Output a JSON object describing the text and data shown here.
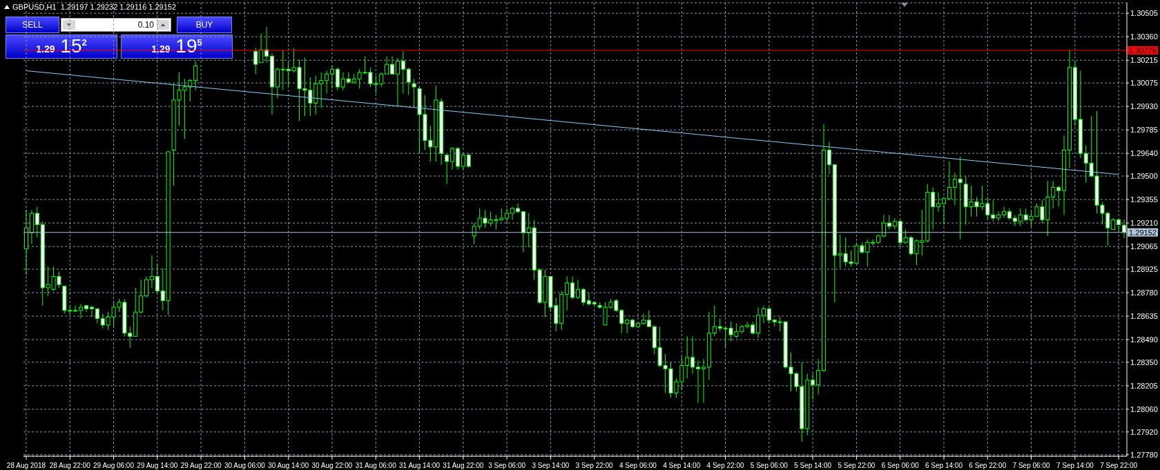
{
  "chart_data": {
    "type": "candlestick",
    "title": "GBPUSD,H1  1.29197 1.29232 1.29116 1.29152",
    "categories": [
      "28 Aug 2018",
      null,
      null,
      null,
      null,
      null,
      null,
      null,
      "28 Aug 22:00",
      null,
      null,
      null,
      null,
      null,
      null,
      null,
      "29 Aug 06:00",
      null,
      null,
      null,
      null,
      null,
      null,
      null,
      "29 Aug 14:00",
      null,
      null,
      null,
      null,
      null,
      null,
      null,
      "29 Aug 22:00",
      null,
      null,
      null,
      null,
      null,
      null,
      null,
      "30 Aug 06:00",
      null,
      null,
      null,
      null,
      null,
      null,
      null,
      "30 Aug 14:00",
      null,
      null,
      null,
      null,
      null,
      null,
      null,
      "30 Aug 22:00",
      null,
      null,
      null,
      null,
      null,
      null,
      null,
      "31 Aug 06:00",
      null,
      null,
      null,
      null,
      null,
      null,
      null,
      "31 Aug 14:00",
      null,
      null,
      null,
      null,
      null,
      null,
      null,
      "31 Aug 22:00",
      null,
      null,
      null,
      null,
      null,
      null,
      null,
      "3 Sep 06:00",
      null,
      null,
      null,
      null,
      null,
      null,
      null,
      "3 Sep 14:00",
      null,
      null,
      null,
      null,
      null,
      null,
      null,
      "3 Sep 22:00",
      null,
      null,
      null,
      null,
      null,
      null,
      null,
      "4 Sep 06:00",
      null,
      null,
      null,
      null,
      null,
      null,
      null,
      "4 Sep 14:00",
      null,
      null,
      null,
      null,
      null,
      null,
      null,
      "4 Sep 22:00",
      null,
      null,
      null,
      null,
      null,
      null,
      null,
      "5 Sep 06:00",
      null,
      null,
      null,
      null,
      null,
      null,
      null,
      "5 Sep 14:00",
      null,
      null,
      null,
      null,
      null,
      null,
      null,
      "5 Sep 22:00",
      null,
      null,
      null,
      null,
      null,
      null,
      null,
      "6 Sep 06:00",
      null,
      null,
      null,
      null,
      null,
      null,
      null,
      "6 Sep 14:00",
      null,
      null,
      null,
      null,
      null,
      null,
      null,
      "6 Sep 22:00",
      null,
      null,
      null,
      null,
      null,
      null,
      null,
      "7 Sep 06:00",
      null,
      null,
      null,
      null,
      null,
      null,
      null,
      "7 Sep 14:00",
      null,
      null,
      null,
      null,
      null,
      null,
      null,
      "7 Sep 22:00",
      null
    ],
    "series": [
      {
        "color": "#00ff00",
        "ohlc": [
          [
            1.2905,
            1.2929,
            1.2889,
            1.2918
          ],
          [
            1.2915,
            1.2929,
            1.2908,
            1.2927
          ],
          [
            1.2927,
            1.2931,
            1.2912,
            1.292
          ],
          [
            1.292,
            1.2922,
            1.287,
            1.2881
          ],
          [
            1.2881,
            1.2894,
            1.2876,
            1.2883
          ],
          [
            1.288,
            1.2894,
            1.2879,
            1.2888
          ],
          [
            1.2888,
            1.2891,
            1.2881,
            1.2883
          ],
          [
            1.2882,
            1.2882,
            1.2865,
            1.2867
          ],
          [
            1.2867,
            1.287,
            1.2865,
            1.2867
          ],
          [
            1.2867,
            1.287,
            1.2866,
            1.2867
          ],
          [
            1.2867,
            1.2871,
            1.2862,
            1.2869
          ],
          [
            1.287,
            1.287,
            1.2866,
            1.2868
          ],
          [
            1.2869,
            1.287,
            1.2863,
            1.2868
          ],
          [
            1.2868,
            1.2868,
            1.2859,
            1.2862
          ],
          [
            1.2862,
            1.2865,
            1.2856,
            1.2858
          ],
          [
            1.2858,
            1.2866,
            1.2855,
            1.2863
          ],
          [
            1.2863,
            1.2872,
            1.2857,
            1.2869
          ],
          [
            1.2869,
            1.2874,
            1.2866,
            1.2872
          ],
          [
            1.2872,
            1.2874,
            1.2851,
            1.2853
          ],
          [
            1.2853,
            1.2857,
            1.2844,
            1.2851
          ],
          [
            1.2851,
            1.2881,
            1.2851,
            1.2866
          ],
          [
            1.2866,
            1.2886,
            1.2865,
            1.2876
          ],
          [
            1.2876,
            1.2888,
            1.2875,
            1.2886
          ],
          [
            1.2886,
            1.2901,
            1.2881,
            1.2888
          ],
          [
            1.2888,
            1.2896,
            1.2878,
            1.2879
          ],
          [
            1.2879,
            1.2893,
            1.2867,
            1.2873
          ],
          [
            1.2873,
            1.2965,
            1.2864,
            1.2965
          ],
          [
            1.2966,
            1.3007,
            1.2944,
            1.2997
          ],
          [
            1.2997,
            1.3014,
            1.2981,
            1.3003
          ],
          [
            1.3003,
            1.301,
            1.2973,
            1.3005
          ],
          [
            1.3005,
            1.301,
            1.2996,
            1.3009
          ],
          [
            1.3009,
            1.3021,
            1.3003,
            1.3018
          ],
          null,
          null,
          null,
          null,
          null,
          null,
          null,
          null,
          null,
          null,
          [
            1.3027,
            1.3029,
            1.3013,
            1.3019
          ],
          [
            1.302,
            1.3038,
            1.302,
            1.3028
          ],
          [
            1.3028,
            1.3042,
            1.302,
            1.3024
          ],
          [
            1.3024,
            1.3026,
            1.2988,
            1.3005
          ],
          [
            1.3005,
            1.3017,
            1.2998,
            1.3016
          ],
          [
            1.3016,
            1.3028,
            1.3003,
            1.3016
          ],
          [
            1.3016,
            1.3021,
            1.3005,
            1.3015
          ],
          [
            1.3015,
            1.3029,
            1.3014,
            1.3017
          ],
          [
            1.3017,
            1.3022,
            1.2984,
            1.3004
          ],
          [
            1.3004,
            1.3023,
            1.2987,
            1.3003
          ],
          [
            1.3003,
            1.3011,
            1.2987,
            1.2995
          ],
          [
            1.2995,
            1.3012,
            1.2988,
            1.3007
          ],
          [
            1.3007,
            1.3014,
            1.2992,
            1.3009
          ],
          [
            1.3009,
            1.3015,
            1.3001,
            1.3013
          ],
          [
            1.3013,
            1.3018,
            1.3004,
            1.3016
          ],
          [
            1.3016,
            1.3017,
            1.3003,
            1.3005
          ],
          [
            1.3005,
            1.3014,
            1.3003,
            1.301
          ],
          [
            1.301,
            1.3014,
            1.3007,
            1.3008
          ],
          [
            1.3008,
            1.3013,
            1.3007,
            1.301
          ],
          [
            1.301,
            1.3016,
            1.3004,
            1.3014
          ],
          [
            1.3014,
            1.3024,
            1.3013,
            1.3014
          ],
          [
            1.3014,
            1.3017,
            1.3005,
            1.3007
          ],
          [
            1.3007,
            1.3012,
            1.3001,
            1.3007
          ],
          [
            1.3007,
            1.3014,
            1.3005,
            1.3013
          ],
          [
            1.3013,
            1.3024,
            1.3013,
            1.3019
          ],
          [
            1.3019,
            1.3024,
            1.3013,
            1.3013
          ],
          [
            1.3013,
            1.3023,
            1.2993,
            1.3021
          ],
          [
            1.3021,
            1.3027,
            1.3001,
            1.3016
          ],
          [
            1.3016,
            1.3017,
            1.3,
            1.3008
          ],
          [
            1.3007,
            1.301,
            1.2993,
            1.3005
          ],
          [
            1.3004,
            1.3005,
            1.2964,
            1.2988
          ],
          [
            1.2988,
            1.3,
            1.2966,
            1.2972
          ],
          [
            1.2972,
            1.2981,
            1.2959,
            1.2968
          ],
          [
            1.2968,
            1.3006,
            1.2959,
            1.2997
          ],
          [
            1.2996,
            1.2998,
            1.2957,
            1.2964
          ],
          [
            1.2963,
            1.2963,
            1.2945,
            1.2959
          ],
          [
            1.2959,
            1.2968,
            1.2954,
            1.2967
          ],
          [
            1.2967,
            1.2968,
            1.2954,
            1.2956
          ],
          [
            1.2956,
            1.2964,
            1.2954,
            1.2963
          ],
          [
            1.2963,
            1.2964,
            1.2955,
            1.2956
          ],
          [
            1.2913,
            1.2921,
            1.2908,
            1.2919
          ],
          [
            1.2919,
            1.293,
            1.2917,
            1.2924
          ],
          [
            1.2924,
            1.2929,
            1.2918,
            1.2921
          ],
          [
            1.2921,
            1.2928,
            1.2919,
            1.2923
          ],
          [
            1.2923,
            1.2926,
            1.2917,
            1.2923
          ],
          [
            1.2923,
            1.293,
            1.2922,
            1.2924
          ],
          [
            1.2924,
            1.293,
            1.2921,
            1.2927
          ],
          [
            1.2927,
            1.2931,
            1.2923,
            1.293
          ],
          [
            1.293,
            1.2933,
            1.2927,
            1.2928
          ],
          [
            1.2928,
            1.2928,
            1.2903,
            1.2915
          ],
          [
            1.2915,
            1.2927,
            1.2906,
            1.2918
          ],
          [
            1.2918,
            1.2923,
            1.2886,
            1.2892
          ],
          [
            1.2892,
            1.2893,
            1.2871,
            1.2872
          ],
          [
            1.2872,
            1.2892,
            1.2863,
            1.2888
          ],
          [
            1.2888,
            1.2888,
            1.2866,
            1.2869
          ],
          [
            1.287,
            1.2875,
            1.2854,
            1.2859
          ],
          [
            1.2859,
            1.2879,
            1.2855,
            1.2877
          ],
          [
            1.2877,
            1.2888,
            1.2867,
            1.2884
          ],
          [
            1.2884,
            1.2888,
            1.2874,
            1.2875
          ],
          [
            1.2875,
            1.2886,
            1.2874,
            1.288
          ],
          [
            1.288,
            1.2881,
            1.287,
            1.2872
          ],
          [
            1.2873,
            1.2878,
            1.287,
            1.2871
          ],
          [
            1.2872,
            1.2872,
            1.287,
            1.2871
          ],
          [
            1.287,
            1.2872,
            1.2868,
            1.2869
          ],
          [
            1.2858,
            1.2872,
            1.2858,
            1.2869
          ],
          [
            1.2869,
            1.2874,
            1.2868,
            1.2872
          ],
          [
            1.2873,
            1.2874,
            1.2866,
            1.2867
          ],
          [
            1.2867,
            1.2868,
            1.2853,
            1.2859
          ],
          [
            1.2859,
            1.2862,
            1.2853,
            1.2861
          ],
          [
            1.2861,
            1.2862,
            1.2856,
            1.2857
          ],
          [
            1.2857,
            1.286,
            1.2856,
            1.2859
          ],
          [
            1.2859,
            1.2865,
            1.2858,
            1.2861
          ],
          [
            1.2861,
            1.2867,
            1.2857,
            1.2857
          ],
          [
            1.2857,
            1.2858,
            1.284,
            1.2844
          ],
          [
            1.2844,
            1.2857,
            1.2832,
            1.2833
          ],
          [
            1.2833,
            1.284,
            1.2816,
            1.2831
          ],
          [
            1.2831,
            1.2835,
            1.2813,
            1.2816
          ],
          [
            1.2816,
            1.2825,
            1.2813,
            1.2823
          ],
          [
            1.2823,
            1.2839,
            1.2818,
            1.2833
          ],
          [
            1.2833,
            1.2851,
            1.2825,
            1.2838
          ],
          [
            1.2838,
            1.2851,
            1.2828,
            1.2832
          ],
          [
            1.2832,
            1.2836,
            1.281,
            1.2831
          ],
          [
            1.2831,
            1.2837,
            1.281,
            1.2832
          ],
          [
            1.2832,
            1.2866,
            1.2824,
            1.2853
          ],
          [
            1.2853,
            1.287,
            1.2851,
            1.2857
          ],
          [
            1.2857,
            1.2862,
            1.2854,
            1.2856
          ],
          [
            1.2856,
            1.2857,
            1.2844,
            1.2856
          ],
          [
            1.2856,
            1.286,
            1.2848,
            1.2852
          ],
          [
            1.2851,
            1.2859,
            1.285,
            1.2854
          ],
          [
            1.2854,
            1.2858,
            1.2853,
            1.2857
          ],
          [
            1.2857,
            1.286,
            1.2856,
            1.2858
          ],
          [
            1.2858,
            1.286,
            1.2852,
            1.2853
          ],
          [
            1.2853,
            1.2869,
            1.285,
            1.2864
          ],
          [
            1.2864,
            1.287,
            1.2859,
            1.2868
          ],
          [
            1.2868,
            1.2869,
            1.2859,
            1.2861
          ],
          [
            1.2861,
            1.2862,
            1.2857,
            1.286
          ],
          [
            1.286,
            1.2863,
            1.2854,
            1.286
          ],
          [
            1.286,
            1.286,
            1.2831,
            1.2832
          ],
          [
            1.2832,
            1.2841,
            1.2817,
            1.2828
          ],
          [
            1.2828,
            1.2829,
            1.2817,
            1.282
          ],
          [
            1.282,
            1.2835,
            1.2786,
            1.2794
          ],
          [
            1.2794,
            1.2828,
            1.279,
            1.2824
          ],
          [
            1.2824,
            1.2828,
            1.2812,
            1.2821
          ],
          [
            1.2821,
            1.2837,
            1.2815,
            1.283
          ],
          [
            1.283,
            1.2982,
            1.2829,
            1.2966
          ],
          [
            1.2966,
            1.2971,
            1.2951,
            1.2957
          ],
          [
            1.2957,
            1.2957,
            1.2872,
            1.2901
          ],
          [
            1.2901,
            1.2914,
            1.2893,
            1.2902
          ],
          [
            1.2902,
            1.2912,
            1.2894,
            1.2897
          ],
          [
            1.2897,
            1.2904,
            1.2894,
            1.2896
          ],
          [
            1.2896,
            1.2909,
            1.2896,
            1.2907
          ],
          [
            1.2907,
            1.2909,
            1.2902,
            1.2903
          ],
          [
            1.2903,
            1.2911,
            1.2894,
            1.2909
          ],
          [
            1.2909,
            1.2911,
            1.2907,
            1.2909
          ],
          [
            1.2909,
            1.2914,
            1.2908,
            1.2913
          ],
          [
            1.2913,
            1.2926,
            1.2912,
            1.2921
          ],
          [
            1.2921,
            1.2926,
            1.2917,
            1.2919
          ],
          [
            1.2919,
            1.2924,
            1.2917,
            1.2922
          ],
          [
            1.2922,
            1.2923,
            1.2906,
            1.2909
          ],
          [
            1.2909,
            1.2917,
            1.2908,
            1.2912
          ],
          [
            1.2912,
            1.2913,
            1.2901,
            1.2902
          ],
          [
            1.2902,
            1.2911,
            1.2895,
            1.291
          ],
          [
            1.2909,
            1.2929,
            1.2901,
            1.291
          ],
          [
            1.291,
            1.2945,
            1.2909,
            1.294
          ],
          [
            1.294,
            1.2943,
            1.2917,
            1.2931
          ],
          [
            1.2931,
            1.294,
            1.2928,
            1.2933
          ],
          [
            1.2933,
            1.2937,
            1.292,
            1.2936
          ],
          [
            1.2936,
            1.2959,
            1.2935,
            1.2943
          ],
          [
            1.2943,
            1.2952,
            1.2932,
            1.2948
          ],
          [
            1.2948,
            1.2962,
            1.2911,
            1.2946
          ],
          [
            1.2945,
            1.295,
            1.292,
            1.2931
          ],
          [
            1.2931,
            1.2944,
            1.2925,
            1.2934
          ],
          [
            1.2934,
            1.2937,
            1.2925,
            1.2931
          ],
          [
            1.2931,
            1.2944,
            1.2929,
            1.2933
          ],
          [
            1.2933,
            1.2937,
            1.2923,
            1.2926
          ],
          [
            1.2926,
            1.2935,
            1.2922,
            1.2924
          ],
          [
            1.2924,
            1.2928,
            1.2922,
            1.2926
          ],
          [
            1.2926,
            1.2931,
            1.2924,
            1.2928
          ],
          [
            1.2928,
            1.293,
            1.2923,
            1.2924
          ],
          [
            1.2924,
            1.2926,
            1.2919,
            1.2922
          ],
          [
            1.2922,
            1.293,
            1.2919,
            1.2926
          ],
          [
            1.2926,
            1.293,
            1.2922,
            1.2923
          ],
          [
            1.2923,
            1.2929,
            1.2918,
            1.2925
          ],
          [
            1.2925,
            1.2933,
            1.2925,
            1.2931
          ],
          [
            1.2931,
            1.2935,
            1.2921,
            1.2923
          ],
          [
            1.2923,
            1.2947,
            1.2913,
            1.2937
          ],
          [
            1.2937,
            1.2947,
            1.293,
            1.2943
          ],
          [
            1.2943,
            1.2944,
            1.2931,
            1.2941
          ],
          [
            1.2941,
            1.2975,
            1.2926,
            1.2966
          ],
          [
            1.2966,
            1.3028,
            1.2955,
            1.3017
          ],
          [
            1.3017,
            1.3021,
            1.2981,
            1.2985
          ],
          [
            1.2985,
            1.3015,
            1.2961,
            1.2964
          ],
          [
            1.2964,
            1.2969,
            1.2946,
            1.2958
          ],
          [
            1.2958,
            1.2987,
            1.2949,
            1.295
          ],
          [
            1.295,
            1.299,
            1.2927,
            1.2932
          ],
          [
            1.2932,
            1.2934,
            1.292,
            1.2927
          ],
          [
            1.2927,
            1.2928,
            1.2907,
            1.2918
          ],
          [
            1.2917,
            1.2924,
            1.2917,
            1.2923
          ],
          [
            1.2923,
            1.2924,
            1.2916,
            1.292
          ],
          [
            1.29197,
            1.29232,
            1.29116,
            1.29152
          ]
        ]
      },
      {
        "type": "line",
        "color": "#87cefa",
        "x": [
          "28 Aug 2018",
          "7 Sep 22:00"
        ],
        "values": [
          1.3015,
          1.2951
        ]
      }
    ],
    "ylim": [
      1.2777,
      1.3057
    ],
    "yticks": [
      1.30505,
      {
        "value": 1.3036,
        "label": "1.30360"
      },
      1.30215,
      1.30075,
      {
        "value": 1.2993,
        "label": "1.29930"
      },
      1.29785,
      {
        "value": 1.2964,
        "label": "1.29640"
      },
      {
        "value": 1.295,
        "label": "1.29500"
      },
      1.29355,
      {
        "value": 1.2921,
        "label": "1.29210"
      },
      1.29065,
      1.28925,
      {
        "value": 1.2878,
        "label": "1.28780"
      },
      1.28635,
      {
        "value": 1.2849,
        "label": "1.28490"
      },
      {
        "value": 1.2835,
        "label": "1.28350"
      },
      1.28205,
      {
        "value": 1.2806,
        "label": "1.28060"
      },
      {
        "value": 1.2792,
        "label": "1.27920"
      },
      {
        "value": 1.2778,
        "label": "1.27780"
      }
    ],
    "grid": true,
    "ref_lines": [
      {
        "axis": "y",
        "value": 1.30276,
        "label": "1.30276",
        "color": "#ff0000"
      },
      {
        "axis": "y",
        "value": 1.29152,
        "label": "1.29152",
        "color": "#b0c4de"
      }
    ],
    "annotations": [
      "SELL",
      "0.10",
      "BUY",
      "1.29 15$^{2}$",
      "1.29 19$^{5}$"
    ]
  }
}
